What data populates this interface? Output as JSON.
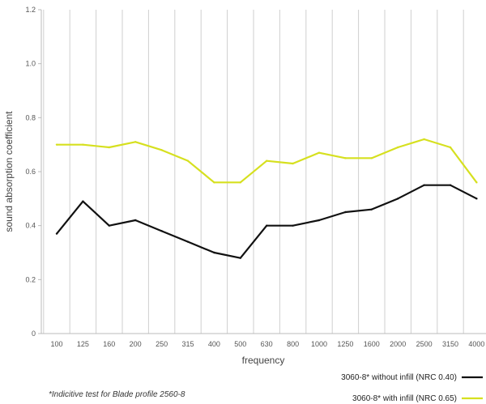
{
  "chart_data": {
    "type": "line",
    "xlabel": "frequency",
    "ylabel": "sound absorption coefficient",
    "ylim": [
      0,
      1.2
    ],
    "y_ticks": [
      "0",
      "0.2",
      "0.4",
      "0.6",
      "0.8",
      "1.0",
      "1.2"
    ],
    "y_tick_values": [
      0,
      0.2,
      0.4,
      0.6,
      0.8,
      1.0,
      1.2
    ],
    "grid": "vertical lines",
    "legend_position": "bottom-right",
    "categories": [
      "100",
      "125",
      "160",
      "200",
      "250",
      "315",
      "400",
      "500",
      "630",
      "800",
      "1000",
      "1250",
      "1600",
      "2000",
      "2500",
      "3150",
      "4000"
    ],
    "series": [
      {
        "name": "3060-8* without infill (NRC 0.40)",
        "color": "#111111",
        "values": [
          0.37,
          0.49,
          0.4,
          0.42,
          0.38,
          0.34,
          0.3,
          0.28,
          0.4,
          0.4,
          0.42,
          0.45,
          0.46,
          0.5,
          0.55,
          0.55,
          0.5
        ]
      },
      {
        "name": "3060-8* with infill (NRC 0.65)",
        "color": "#d6e01f",
        "values": [
          0.7,
          0.7,
          0.69,
          0.71,
          0.68,
          0.64,
          0.56,
          0.56,
          0.64,
          0.63,
          0.67,
          0.65,
          0.65,
          0.69,
          0.72,
          0.69,
          0.56
        ]
      }
    ]
  },
  "footnote": "*Indicitive test for Blade profile 2560-8"
}
